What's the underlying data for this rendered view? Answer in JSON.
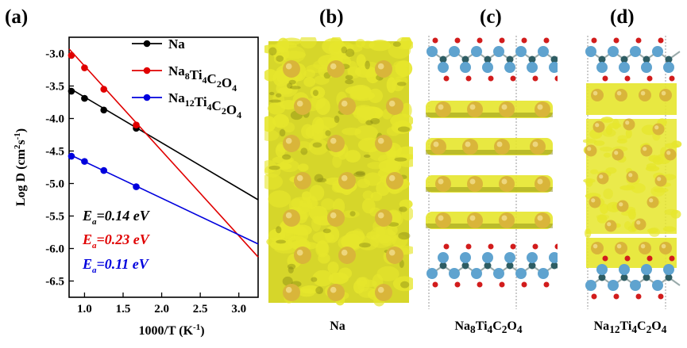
{
  "panels": {
    "a": "(a)",
    "b": "(b)",
    "c": "(c)",
    "d": "(d)"
  },
  "bottom_labels": {
    "b_html": "Na",
    "c_html": "Na<sub>8</sub>Ti<sub>4</sub>C<sub>2</sub>O<sub>4</sub>",
    "d_html": "Na<sub>12</sub>Ti<sub>4</sub>C<sub>2</sub>O<sub>4</sub>"
  },
  "colors": {
    "na_series": "#000000",
    "na8_series": "#e00000",
    "na12_series": "#0000dd",
    "density_yellow": "#e6e62c",
    "na_atom": "#d9b53a",
    "ti_atom": "#5fa3cf",
    "c_atom": "#2e5d63",
    "o_atom": "#d21c1c"
  },
  "chart_data": {
    "type": "scatter",
    "xlabel": "1000/T (K⁻¹)",
    "ylabel": "Log D (cm²s⁻¹)",
    "xlim": [
      0.8,
      3.25
    ],
    "ylim": [
      -6.75,
      -2.75
    ],
    "xticks": [
      1.0,
      1.5,
      2.0,
      2.5,
      3.0
    ],
    "xtick_labels": [
      "1.0",
      "1.5",
      "2.0",
      "2.5",
      "3.0"
    ],
    "yticks": [
      -3.0,
      -3.5,
      -4.0,
      -4.5,
      -5.0,
      -5.5,
      -6.0,
      -6.5
    ],
    "ytick_labels": [
      "-3.0",
      "-3.5",
      "-4.0",
      "-4.5",
      "-5.0",
      "-5.5",
      "-6.0",
      "-6.5"
    ],
    "legend_position": "top-right",
    "series": [
      {
        "name": "Na",
        "legend_html": "Na",
        "color": "#000000",
        "x": [
          0.83,
          1.0,
          1.25,
          1.67
        ],
        "y": [
          -3.58,
          -3.69,
          -3.87,
          -4.15
        ],
        "fit_y_range": [
          -3.53,
          -5.25
        ],
        "annotation_html": "<tspan font-style='italic'>E</tspan><tspan font-style='italic' font-size='11' dy='5'>a</tspan><tspan font-style='italic' dy='-5'>=0.14 eV</tspan>"
      },
      {
        "name": "Na8Ti4C2O4",
        "legend_html": "Na<sub>8</sub>Ti<sub>4</sub>C<sub>2</sub>O<sub>4</sub>",
        "color": "#e00000",
        "x": [
          0.83,
          1.0,
          1.25,
          1.67
        ],
        "y": [
          -3.03,
          -3.22,
          -3.55,
          -4.1
        ],
        "fit_y_range": [
          -2.93,
          -6.13
        ],
        "annotation_html": "<tspan font-style='italic'>E</tspan><tspan font-style='italic' font-size='11' dy='5'>a</tspan><tspan font-style='italic' dy='-5'>=0.23 eV</tspan>"
      },
      {
        "name": "Na12Ti4C2O4",
        "legend_html": "Na<sub>12</sub>Ti<sub>4</sub>C<sub>2</sub>O<sub>4</sub>",
        "color": "#0000dd",
        "x": [
          0.83,
          1.0,
          1.25,
          1.67
        ],
        "y": [
          -4.58,
          -4.66,
          -4.8,
          -5.05
        ],
        "fit_y_range": [
          -4.55,
          -5.93
        ],
        "annotation_html": "<tspan font-style='italic'>E</tspan><tspan font-style='italic' font-size='11' dy='5'>a</tspan><tspan font-style='italic' dy='-5'>=0.11 eV</tspan>"
      }
    ]
  }
}
